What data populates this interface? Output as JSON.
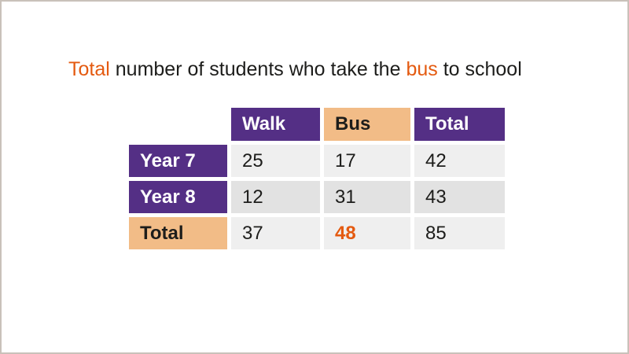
{
  "title": {
    "segments": [
      {
        "text": "Total"
      },
      {
        "text": " number of students who take the "
      },
      {
        "text": "bus"
      },
      {
        "text": " to school"
      }
    ],
    "full_text": "Total number of students who take the bus to school"
  },
  "table": {
    "corner": "",
    "column_headers": [
      {
        "label": "Walk",
        "style": "purple"
      },
      {
        "label": "Bus",
        "style": "peach"
      },
      {
        "label": "Total",
        "style": "purple"
      }
    ],
    "rows": [
      {
        "header": "Year 7",
        "header_style": "purple",
        "cells": [
          "25",
          "17",
          "42"
        ]
      },
      {
        "header": "Year 8",
        "header_style": "purple",
        "cells": [
          "12",
          "31",
          "43"
        ]
      },
      {
        "header": "Total",
        "header_style": "peach",
        "cells": [
          "37",
          "48",
          "85"
        ]
      }
    ],
    "highlighted_value": "48"
  },
  "colors": {
    "purple": "#542f85",
    "peach": "#f2bc87",
    "orange_accent": "#e45a10",
    "row_light": "#efefef",
    "row_dark": "#e2e2e2",
    "text_dark": "#1d1d1b",
    "frame_border": "#c9c1ba",
    "background": "#ffffff"
  },
  "chart_data": {
    "type": "table",
    "title": "Total number of students who take the bus to school",
    "column_headers": [
      "Walk",
      "Bus",
      "Total"
    ],
    "row_headers": [
      "Year 7",
      "Year 8",
      "Total"
    ],
    "rows": [
      {
        "label": "Year 7",
        "Walk": 25,
        "Bus": 17,
        "Total": 42
      },
      {
        "label": "Year 8",
        "Walk": 12,
        "Bus": 31,
        "Total": 43
      },
      {
        "label": "Total",
        "Walk": 37,
        "Bus": 48,
        "Total": 85
      }
    ],
    "highlighted_cell": {
      "row": "Total",
      "column": "Bus",
      "value": 48
    },
    "highlighted_headers": {
      "column": "Bus",
      "row": "Total"
    },
    "title_highlighted_words": [
      "Total",
      "bus"
    ]
  }
}
